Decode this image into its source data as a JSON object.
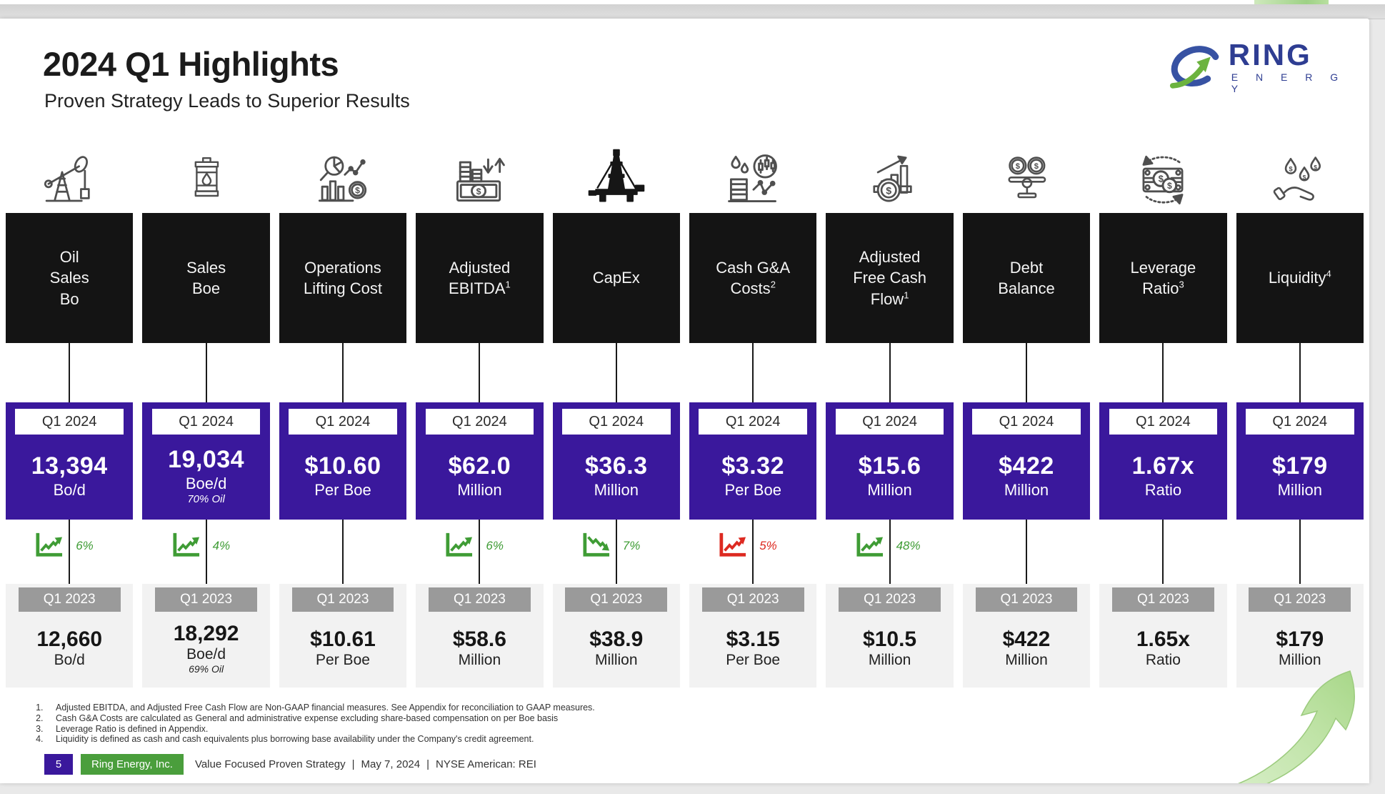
{
  "header": {
    "title": "2024 Q1 Highlights",
    "subtitle": "Proven Strategy Leads to Superior Results"
  },
  "logo": {
    "name": "RING",
    "sub": "E N E R G Y"
  },
  "labels": {
    "q1_2024": "Q1 2024",
    "q1_2023": "Q1 2023"
  },
  "columns": [
    {
      "icon": "pumpjack-icon",
      "title_lines": [
        "Oil",
        "Sales",
        "Bo"
      ],
      "sup": "",
      "current": {
        "value": "13,394",
        "unit": "Bo/d",
        "note": ""
      },
      "change": {
        "direction": "up",
        "color": "green",
        "value": "6%"
      },
      "prior": {
        "value": "12,660",
        "unit": "Bo/d",
        "note": ""
      }
    },
    {
      "icon": "oil-barrel-icon",
      "title_lines": [
        "Sales",
        "Boe"
      ],
      "sup": "",
      "current": {
        "value": "19,034",
        "unit": "Boe/d",
        "note": "70% Oil"
      },
      "change": {
        "direction": "up",
        "color": "green",
        "value": "4%"
      },
      "prior": {
        "value": "18,292",
        "unit": "Boe/d",
        "note": "69% Oil"
      }
    },
    {
      "icon": "cost-analysis-icon",
      "title_lines": [
        "Operations",
        "Lifting Cost"
      ],
      "sup": "",
      "current": {
        "value": "$10.60",
        "unit": "Per Boe",
        "note": ""
      },
      "change": {
        "direction": "none",
        "color": "",
        "value": ""
      },
      "prior": {
        "value": "$10.61",
        "unit": "Per Boe",
        "note": ""
      }
    },
    {
      "icon": "cash-flow-icon",
      "title_lines": [
        "Adjusted",
        "EBITDA"
      ],
      "sup": "1",
      "current": {
        "value": "$62.0",
        "unit": "Million",
        "note": ""
      },
      "change": {
        "direction": "up",
        "color": "green",
        "value": "6%"
      },
      "prior": {
        "value": "$58.6",
        "unit": "Million",
        "note": ""
      }
    },
    {
      "icon": "drilling-rig-icon",
      "title_lines": [
        "CapEx"
      ],
      "sup": "",
      "current": {
        "value": "$36.3",
        "unit": "Million",
        "note": ""
      },
      "change": {
        "direction": "down",
        "color": "green",
        "value": "7%"
      },
      "prior": {
        "value": "$38.9",
        "unit": "Million",
        "note": ""
      }
    },
    {
      "icon": "oil-market-icon",
      "title_lines": [
        "Cash G&A",
        "Costs"
      ],
      "sup": "2",
      "current": {
        "value": "$3.32",
        "unit": "Per Boe",
        "note": ""
      },
      "change": {
        "direction": "up",
        "color": "red",
        "value": "5%"
      },
      "prior": {
        "value": "$3.15",
        "unit": "Per Boe",
        "note": ""
      }
    },
    {
      "icon": "profit-growth-icon",
      "title_lines": [
        "Adjusted",
        "Free Cash",
        "Flow"
      ],
      "sup": "1",
      "current": {
        "value": "$15.6",
        "unit": "Million",
        "note": ""
      },
      "change": {
        "direction": "up",
        "color": "green",
        "value": "48%"
      },
      "prior": {
        "value": "$10.5",
        "unit": "Million",
        "note": ""
      }
    },
    {
      "icon": "balance-scale-icon",
      "title_lines": [
        "Debt",
        "Balance"
      ],
      "sup": "",
      "current": {
        "value": "$422",
        "unit": "Million",
        "note": ""
      },
      "change": {
        "direction": "none",
        "color": "",
        "value": ""
      },
      "prior": {
        "value": "$422",
        "unit": "Million",
        "note": ""
      }
    },
    {
      "icon": "money-cycle-icon",
      "title_lines": [
        "Leverage",
        "Ratio"
      ],
      "sup": "3",
      "current": {
        "value": "1.67x",
        "unit": "Ratio",
        "note": ""
      },
      "change": {
        "direction": "none",
        "color": "",
        "value": ""
      },
      "prior": {
        "value": "1.65x",
        "unit": "Ratio",
        "note": ""
      }
    },
    {
      "icon": "liquidity-hand-icon",
      "title_lines": [
        "Liquidity"
      ],
      "sup": "4",
      "current": {
        "value": "$179",
        "unit": "Million",
        "note": ""
      },
      "change": {
        "direction": "none",
        "color": "",
        "value": ""
      },
      "prior": {
        "value": "$179",
        "unit": "Million",
        "note": ""
      }
    }
  ],
  "footnotes": [
    "Adjusted EBITDA, and Adjusted Free Cash Flow are Non-GAAP financial measures. See Appendix for reconciliation to GAAP measures.",
    "Cash G&A Costs are calculated as General and administrative expense excluding share-based compensation on per Boe basis",
    "Leverage Ratio is defined in Appendix.",
    "Liquidity is defined as cash and cash equivalents plus  borrowing base availability under the Company's credit agreement."
  ],
  "footer": {
    "page_number": "5",
    "company": "Ring Energy, Inc.",
    "tagline": "Value Focused Proven Strategy",
    "separator": "|",
    "date": "May 7, 2024",
    "ticker": "NYSE American: REI"
  },
  "colors": {
    "purple": "#3a189c",
    "green": "#3f9c35",
    "red": "#dd2a21",
    "footer_green": "#4a9e3c",
    "black_box": "#141414",
    "gray_label": "#9a9a9a",
    "panel_gray": "#f2f2f2"
  }
}
